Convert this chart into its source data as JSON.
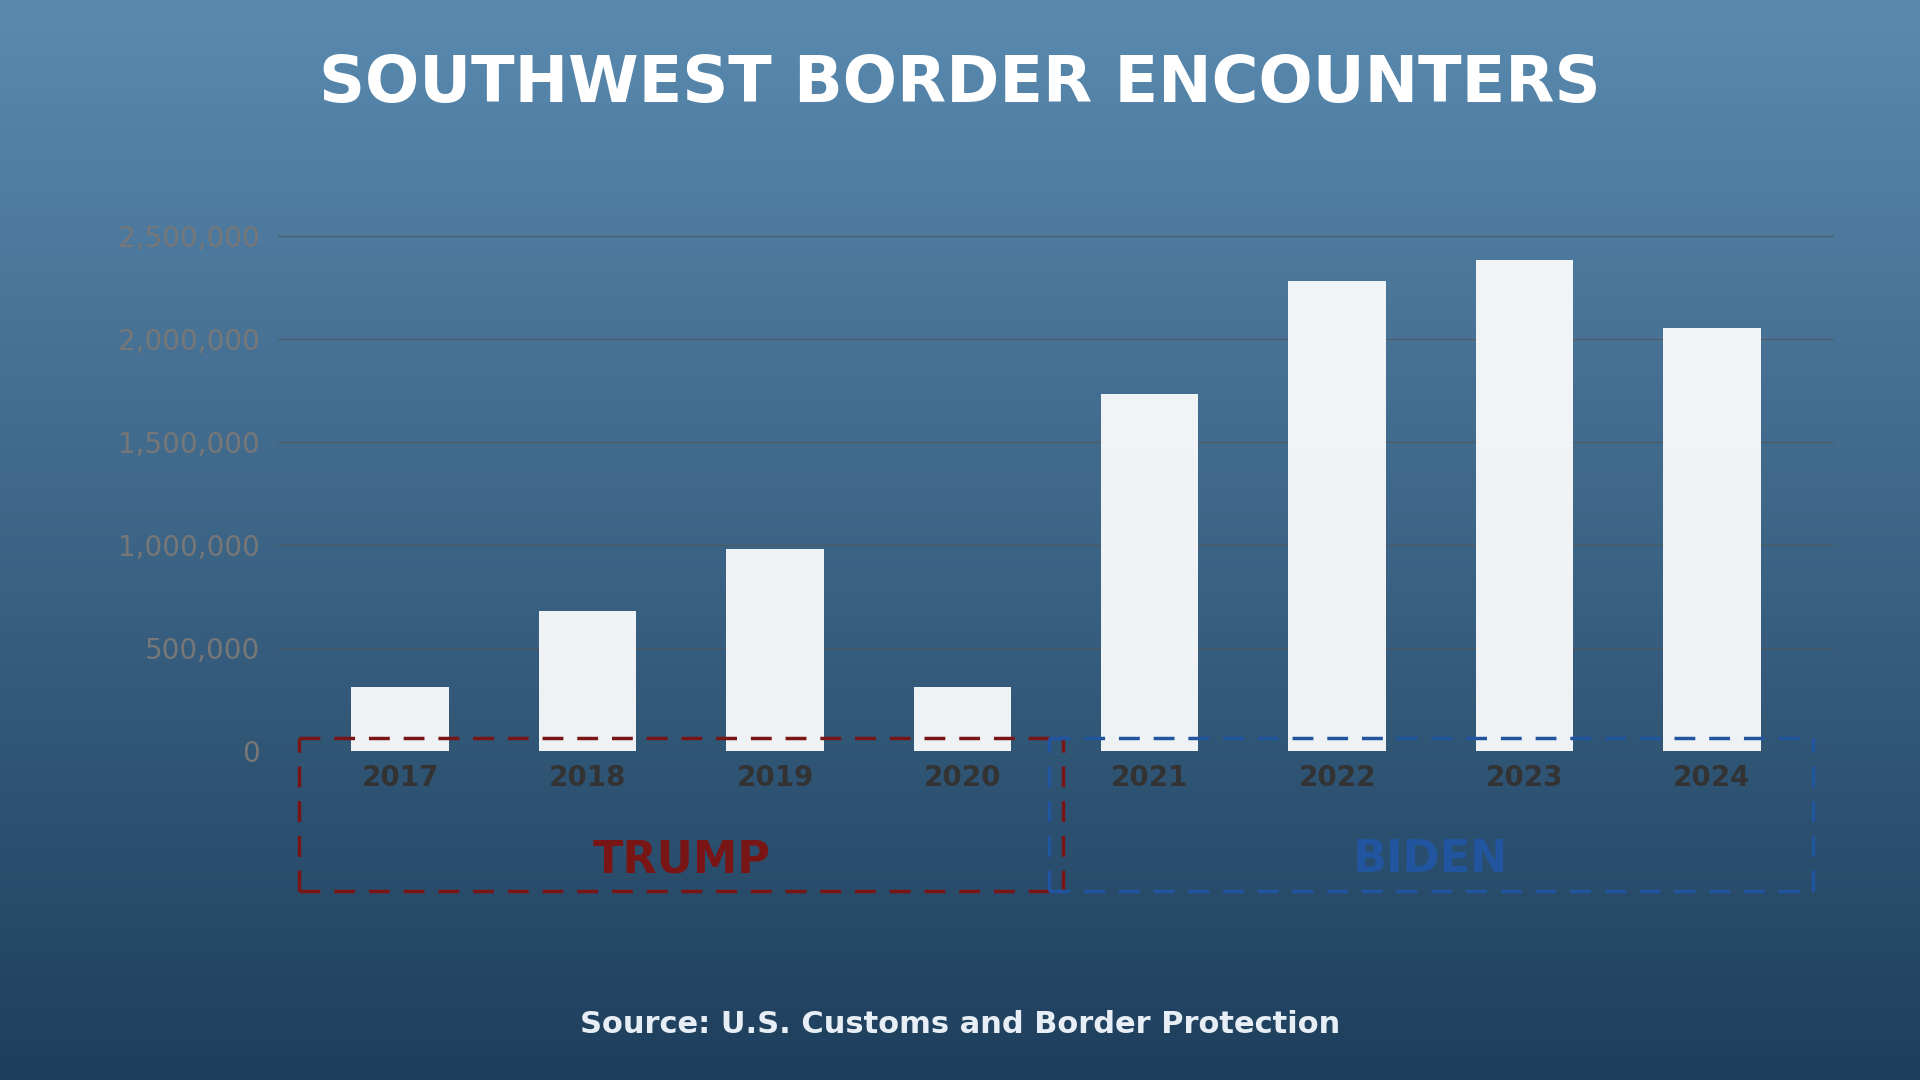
{
  "title": "SOUTHWEST BORDER ENCOUNTERS",
  "source": "Source: U.S. Customs and Border Protection",
  "years": [
    "2017",
    "2018",
    "2019",
    "2020",
    "2021",
    "2022",
    "2023",
    "2024"
  ],
  "values": [
    310000,
    680000,
    980000,
    310000,
    1730000,
    2280000,
    2380000,
    2050000
  ],
  "bar_color": "#ffffff",
  "bar_alpha": 0.93,
  "trump_label": "TRUMP",
  "biden_label": "BIDEN",
  "trump_box_color": "#7a1515",
  "biden_box_color": "#2255a0",
  "title_color": "#ffffff",
  "ytick_color": "#777777",
  "xtick_color": "#333333",
  "source_color": "#e8eef5",
  "orange_bar_color": "#c8631a",
  "grid_color": "#555555",
  "ylim": [
    0,
    2700000
  ],
  "yticks": [
    0,
    500000,
    1000000,
    1500000,
    2000000,
    2500000
  ],
  "title_fontsize": 46,
  "tick_fontsize": 20,
  "label_fontsize": 32,
  "source_fontsize": 22,
  "bg_top": "#5a8ab0",
  "bg_mid": "#4a7a9f",
  "bg_bottom": "#1e3f5c",
  "chart_panel_color": "#b8cdd8",
  "chart_panel_alpha": 0.55
}
